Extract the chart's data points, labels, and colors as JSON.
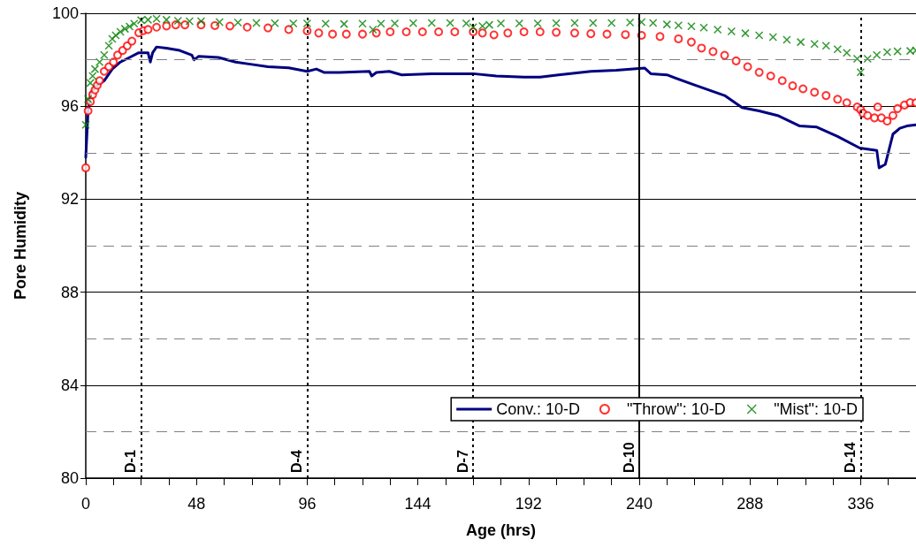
{
  "chart_data": {
    "type": "line",
    "xlabel": "Age (hrs)",
    "ylabel": "Pore Humidity",
    "xlim": [
      0,
      360
    ],
    "xticks": [
      0,
      {
        "value": 12,
        "label": null
      },
      {
        "value": 24,
        "label": null
      },
      {
        "value": 36,
        "label": null
      },
      48,
      {
        "value": 60,
        "label": null
      },
      {
        "value": 72,
        "label": null
      },
      {
        "value": 84,
        "label": null
      },
      96,
      {
        "value": 108,
        "label": null
      },
      {
        "value": 120,
        "label": null
      },
      {
        "value": 132,
        "label": null
      },
      144,
      {
        "value": 156,
        "label": null
      },
      {
        "value": 168,
        "label": null
      },
      {
        "value": 180,
        "label": null
      },
      192,
      {
        "value": 204,
        "label": null
      },
      {
        "value": 216,
        "label": null
      },
      {
        "value": 228,
        "label": null
      },
      240,
      {
        "value": 252,
        "label": null
      },
      {
        "value": 264,
        "label": null
      },
      {
        "value": 276,
        "label": null
      },
      288,
      {
        "value": 300,
        "label": null
      },
      {
        "value": 312,
        "label": null
      },
      {
        "value": 324,
        "label": null
      },
      336,
      {
        "value": 348,
        "label": null
      }
    ],
    "ylim": [
      80,
      100
    ],
    "yticks": [
      80,
      84,
      88,
      92,
      96,
      100
    ],
    "grid": "y",
    "legend": "bottom right",
    "ref_lines": [
      {
        "axis": "y",
        "value": 82,
        "label": null,
        "color": "#808080",
        "line_style": "dashed"
      },
      {
        "axis": "y",
        "value": 86,
        "label": null,
        "color": "#808080",
        "line_style": "dashed"
      },
      {
        "axis": "y",
        "value": 90,
        "label": null,
        "color": "#808080",
        "line_style": "dashed"
      },
      {
        "axis": "y",
        "value": 94,
        "label": null,
        "color": "#808080",
        "line_style": "dashed"
      },
      {
        "axis": "y",
        "value": 98,
        "label": null,
        "color": "#808080",
        "line_style": "dashed"
      },
      {
        "axis": "x",
        "value": 24,
        "label": "D-1",
        "color": "#000000",
        "line_style": "dotted"
      },
      {
        "axis": "x",
        "value": 96,
        "label": "D-4",
        "color": "#000000",
        "line_style": "dotted"
      },
      {
        "axis": "x",
        "value": 168,
        "label": "D-7",
        "color": "#000000",
        "line_style": "dotted"
      },
      {
        "axis": "x",
        "value": 240,
        "label": "D-10",
        "color": "#000000",
        "line_style": "solid"
      },
      {
        "axis": "x",
        "value": 336,
        "label": "D-14",
        "color": "#000000",
        "line_style": "dotted"
      }
    ],
    "series": [
      {
        "name": "Conv.: 10-D",
        "marker": "none",
        "color": "#000080",
        "x": [
          0,
          1,
          2.3,
          5,
          8,
          11.5,
          15,
          19,
          23,
          27,
          28,
          29,
          30.7,
          35,
          40.7,
          46,
          47,
          49,
          57.5,
          65,
          72,
          79,
          88,
          96,
          100,
          103.5,
          110,
          123,
          124,
          126,
          131.6,
          137,
          150,
          168,
          178,
          190,
          197,
          205,
          219,
          230,
          242.4,
          245,
          252,
          262.6,
          277,
          284.6,
          292,
          300,
          309.6,
          317,
          326,
          335.6,
          343,
          344,
          346.7,
          350,
          353,
          356,
          360
        ],
        "values": [
          93.8,
          95.8,
          96.6,
          96.9,
          97.1,
          97.6,
          97.9,
          98.1,
          98.3,
          98.3,
          97.9,
          98.3,
          98.55,
          98.5,
          98.4,
          98.2,
          98.0,
          98.15,
          98.1,
          97.9,
          97.8,
          97.7,
          97.65,
          97.5,
          97.6,
          97.45,
          97.45,
          97.5,
          97.3,
          97.45,
          97.5,
          97.35,
          97.4,
          97.4,
          97.3,
          97.25,
          97.25,
          97.35,
          97.5,
          97.55,
          97.64,
          97.4,
          97.35,
          96.96,
          96.46,
          95.94,
          95.8,
          95.6,
          95.15,
          95.1,
          94.7,
          94.2,
          94.1,
          93.35,
          93.5,
          94.8,
          95.05,
          95.15,
          95.2
        ]
      },
      {
        "name": "\"Throw\": 10-D",
        "type": "scatter",
        "marker": "circle",
        "color": "#ff0000",
        "x": [
          0,
          1,
          2,
          3,
          4,
          5,
          6,
          8,
          10,
          12,
          13.8,
          16,
          18,
          20,
          23,
          25,
          27,
          30.7,
          35,
          39,
          43,
          50,
          56,
          62.5,
          70,
          79,
          88,
          96,
          101,
          107,
          113,
          120,
          126,
          132,
          139,
          146,
          153,
          160,
          168,
          172,
          177,
          183,
          190,
          197,
          204,
          212,
          219,
          226,
          234,
          241,
          249,
          257,
          262.6,
          267,
          272,
          277,
          282,
          287,
          292,
          297,
          302,
          306.5,
          311,
          316,
          321,
          326,
          330,
          334.5,
          336,
          337,
          339,
          342,
          343.4,
          345,
          347.5,
          350,
          352,
          355,
          357.5,
          360
        ],
        "values": [
          93.35,
          95.8,
          96.2,
          96.5,
          96.7,
          96.9,
          97.1,
          97.5,
          97.7,
          97.9,
          98.2,
          98.4,
          98.6,
          98.8,
          99.16,
          99.25,
          99.3,
          99.4,
          99.45,
          99.5,
          99.5,
          99.5,
          99.47,
          99.45,
          99.4,
          99.37,
          99.3,
          99.24,
          99.15,
          99.1,
          99.1,
          99.1,
          99.15,
          99.2,
          99.2,
          99.2,
          99.2,
          99.2,
          99.2,
          99.15,
          99.07,
          99.15,
          99.2,
          99.2,
          99.18,
          99.15,
          99.12,
          99.1,
          99.08,
          99.05,
          99.0,
          98.9,
          98.76,
          98.5,
          98.35,
          98.19,
          97.95,
          97.7,
          97.46,
          97.3,
          97.1,
          96.88,
          96.75,
          96.6,
          96.46,
          96.3,
          96.15,
          95.97,
          95.85,
          95.7,
          95.6,
          95.5,
          95.97,
          95.5,
          95.36,
          95.6,
          95.9,
          96.05,
          96.16,
          96.15
        ]
      },
      {
        "name": "\"Mist\": 10-D",
        "type": "scatter",
        "marker": "cross",
        "color": "#008000",
        "x": [
          0,
          1,
          2,
          3,
          4,
          6,
          8,
          10,
          11.5,
          13,
          15,
          17,
          19,
          21,
          24,
          27,
          30.7,
          35,
          40,
          45,
          50,
          58,
          66,
          74,
          82,
          90,
          96,
          104,
          112,
          120,
          124.5,
          128,
          134,
          142,
          150,
          158,
          165,
          168,
          172,
          175,
          180,
          188,
          196,
          204,
          212,
          220,
          228,
          236,
          241,
          246,
          252,
          257,
          262.6,
          268,
          274,
          280,
          286,
          292,
          298,
          304,
          310,
          316,
          321,
          326,
          330,
          334.5,
          336,
          339,
          343,
          347.5,
          352,
          357.5,
          360
        ],
        "values": [
          95.2,
          96.3,
          97.0,
          97.3,
          97.6,
          97.9,
          98.2,
          98.6,
          98.9,
          99.05,
          99.2,
          99.33,
          99.43,
          99.55,
          99.7,
          99.72,
          99.76,
          99.72,
          99.68,
          99.66,
          99.66,
          99.62,
          99.6,
          99.58,
          99.57,
          99.56,
          99.56,
          99.55,
          99.54,
          99.55,
          99.3,
          99.55,
          99.56,
          99.57,
          99.58,
          99.58,
          99.56,
          99.4,
          99.45,
          99.5,
          99.56,
          99.56,
          99.56,
          99.57,
          99.58,
          99.58,
          99.58,
          99.6,
          99.62,
          99.58,
          99.52,
          99.48,
          99.44,
          99.38,
          99.3,
          99.22,
          99.14,
          99.05,
          98.97,
          98.86,
          98.76,
          98.68,
          98.6,
          98.45,
          98.3,
          98.04,
          97.46,
          98.04,
          98.2,
          98.33,
          98.36,
          98.38,
          98.4
        ]
      }
    ]
  }
}
